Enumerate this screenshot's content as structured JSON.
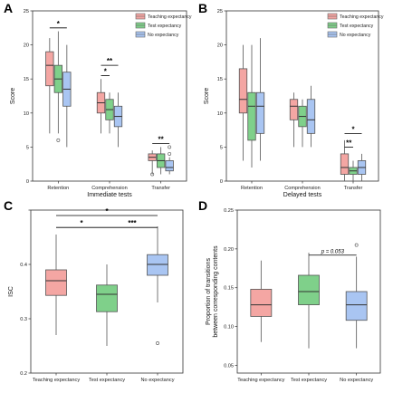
{
  "colors": {
    "teaching": "#f4a6a3",
    "test": "#7fd08a",
    "none": "#a9c5f2"
  },
  "chart_data": [
    {
      "panel": "A",
      "type": "box",
      "xlabel": "Immediate tests",
      "ylabel": "Score",
      "ylim": [
        0,
        25
      ],
      "yticks": [
        0,
        5,
        10,
        15,
        20,
        25
      ],
      "categories": [
        "Retention",
        "Comprehension",
        "Transfer"
      ],
      "legend": [
        "Teaching expectancy",
        "Test expectancy",
        "No expectancy"
      ],
      "legend_position": "top-right",
      "series": [
        {
          "name": "Teaching expectancy",
          "boxes": [
            {
              "min": 7,
              "q1": 14,
              "median": 17,
              "q3": 19,
              "max": 21,
              "outliers": []
            },
            {
              "min": 7,
              "q1": 10,
              "median": 11.5,
              "q3": 13,
              "max": 15,
              "outliers": []
            },
            {
              "min": 1,
              "q1": 3,
              "median": 3.5,
              "q3": 4,
              "max": 4.5,
              "outliers": [
                1
              ]
            }
          ]
        },
        {
          "name": "Test expectancy",
          "boxes": [
            {
              "min": 7,
              "q1": 13,
              "median": 15,
              "q3": 17,
              "max": 22,
              "outliers": [
                6
              ]
            },
            {
              "min": 7,
              "q1": 9,
              "median": 10.5,
              "q3": 12,
              "max": 13,
              "outliers": []
            },
            {
              "min": 1,
              "q1": 2,
              "median": 3,
              "q3": 4,
              "max": 5,
              "outliers": []
            }
          ]
        },
        {
          "name": "No expectancy",
          "boxes": [
            {
              "min": 5,
              "q1": 11,
              "median": 13.5,
              "q3": 16,
              "max": 20,
              "outliers": []
            },
            {
              "min": 5,
              "q1": 8,
              "median": 9.5,
              "q3": 11,
              "max": 13,
              "outliers": []
            },
            {
              "min": 1,
              "q1": 1.5,
              "median": 2,
              "q3": 3,
              "max": 3.5,
              "outliers": [
                5,
                4
              ]
            }
          ]
        }
      ],
      "significance": [
        {
          "category": 0,
          "from": 0,
          "to": 2,
          "y": 22.5,
          "label": "*"
        },
        {
          "category": 1,
          "from": 0,
          "to": 2,
          "y": 17,
          "label": "**"
        },
        {
          "category": 1,
          "from": 0,
          "to": 1,
          "y": 15.5,
          "label": "*"
        },
        {
          "category": 2,
          "from": 0,
          "to": 2,
          "y": 5.5,
          "label": "**"
        }
      ]
    },
    {
      "panel": "B",
      "type": "box",
      "xlabel": "Delayed tests",
      "ylabel": "Score",
      "ylim": [
        0,
        25
      ],
      "yticks": [
        0,
        5,
        10,
        15,
        20,
        25
      ],
      "categories": [
        "Retention",
        "Comprehension",
        "Transfer"
      ],
      "legend": [
        "Teaching expectancy",
        "Test expectancy",
        "No expectancy"
      ],
      "legend_position": "top-right",
      "series": [
        {
          "name": "Teaching expectancy",
          "boxes": [
            {
              "min": 3,
              "q1": 10,
              "median": 12,
              "q3": 16.5,
              "max": 20,
              "outliers": []
            },
            {
              "min": 5,
              "q1": 9,
              "median": 11,
              "q3": 12,
              "max": 13,
              "outliers": []
            },
            {
              "min": 0,
              "q1": 1,
              "median": 2,
              "q3": 4,
              "max": 6,
              "outliers": []
            }
          ]
        },
        {
          "name": "Test expectancy",
          "boxes": [
            {
              "min": 2,
              "q1": 6,
              "median": 11,
              "q3": 13,
              "max": 20,
              "outliers": []
            },
            {
              "min": 5,
              "q1": 8,
              "median": 9.5,
              "q3": 11,
              "max": 12,
              "outliers": []
            },
            {
              "min": 0,
              "q1": 1,
              "median": 1.5,
              "q3": 2,
              "max": 3,
              "outliers": []
            }
          ]
        },
        {
          "name": "No expectancy",
          "boxes": [
            {
              "min": 3,
              "q1": 7,
              "median": 11,
              "q3": 13,
              "max": 21,
              "outliers": []
            },
            {
              "min": 5,
              "q1": 7,
              "median": 9,
              "q3": 12,
              "max": 14,
              "outliers": []
            },
            {
              "min": 0,
              "q1": 1,
              "median": 2,
              "q3": 3,
              "max": 4,
              "outliers": []
            }
          ]
        }
      ],
      "significance": [
        {
          "category": 2,
          "from": 0,
          "to": 2,
          "y": 7,
          "label": "*"
        },
        {
          "category": 2,
          "from": 0,
          "to": 1,
          "y": 5,
          "label": "**"
        }
      ]
    },
    {
      "panel": "C",
      "type": "box",
      "xlabel": "",
      "ylabel": "ISC",
      "ylim": [
        0.2,
        0.5
      ],
      "yticks": [
        0.2,
        0.3,
        0.4,
        0.5
      ],
      "yticklabels": [
        "0.2",
        "0.3",
        "0.4",
        ""
      ],
      "categories": [
        "Teaching expectancy",
        "Test expectancy",
        "No expectancy"
      ],
      "boxes": [
        {
          "min": 0.27,
          "q1": 0.343,
          "median": 0.37,
          "q3": 0.39,
          "max": 0.455,
          "outliers": []
        },
        {
          "min": 0.25,
          "q1": 0.313,
          "median": 0.345,
          "q3": 0.362,
          "max": 0.4,
          "outliers": []
        },
        {
          "min": 0.33,
          "q1": 0.38,
          "median": 0.4,
          "q3": 0.418,
          "max": 0.47,
          "outliers": [
            0.255
          ]
        }
      ],
      "significance": [
        {
          "from": 0,
          "to": 2,
          "y": 0.49,
          "label": "*"
        },
        {
          "from": 0,
          "to": 1,
          "y": 0.468,
          "label": "*"
        },
        {
          "from": 1,
          "to": 2,
          "y": 0.468,
          "label": "***"
        }
      ]
    },
    {
      "panel": "D",
      "type": "box",
      "xlabel": "",
      "ylabel": "Proportion of transitions\nbetween corresponding contents",
      "ylim": [
        0.04,
        0.25
      ],
      "yticks": [
        0.05,
        0.1,
        0.15,
        0.2,
        0.25
      ],
      "yticklabels": [
        "0.05",
        "0.10",
        "0.15",
        "0.20",
        "0.25"
      ],
      "categories": [
        "Teaching expectancy",
        "Test expectancy",
        "No expectancy"
      ],
      "boxes": [
        {
          "min": 0.08,
          "q1": 0.113,
          "median": 0.128,
          "q3": 0.148,
          "max": 0.185,
          "outliers": []
        },
        {
          "min": 0.072,
          "q1": 0.128,
          "median": 0.145,
          "q3": 0.166,
          "max": 0.195,
          "outliers": []
        },
        {
          "min": 0.072,
          "q1": 0.108,
          "median": 0.128,
          "q3": 0.145,
          "max": 0.19,
          "outliers": [
            0.205
          ]
        }
      ],
      "significance": [
        {
          "from": 1,
          "to": 2,
          "y": 0.192,
          "label": "p = 0.053"
        }
      ]
    }
  ]
}
